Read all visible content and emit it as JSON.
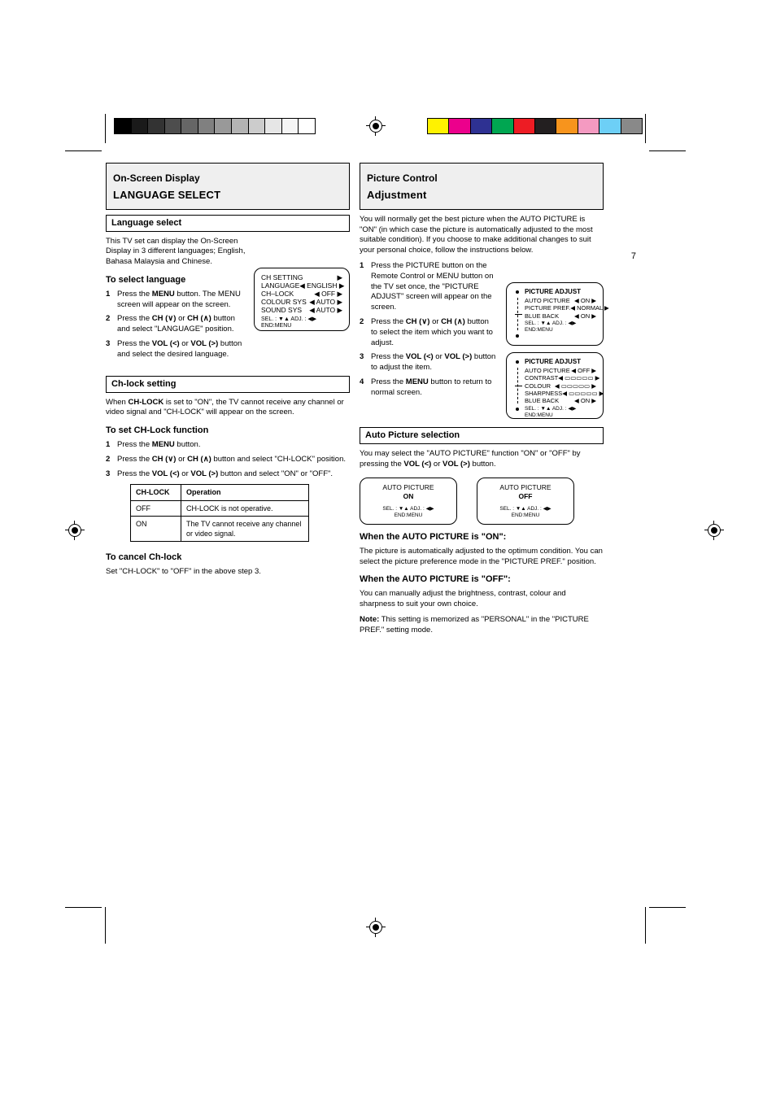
{
  "print_marks": {
    "gray_steps": [
      "#000000",
      "#1a1a1a",
      "#333333",
      "#4d4d4d",
      "#666666",
      "#808080",
      "#999999",
      "#b3b3b3",
      "#cccccc",
      "#e6e6e6",
      "#f5f5f5",
      "#ffffff"
    ],
    "color_steps": [
      "#fff200",
      "#ec008c",
      "#2e3192",
      "#00a651",
      "#ed1c24",
      "#231f20",
      "#f7941d",
      "#f49ac1",
      "#6dcff6",
      "#898989"
    ]
  },
  "left": {
    "section": {
      "pretitle": "On-Screen Display",
      "title": "LANGUAGE SELECT"
    },
    "sub1": "Language select",
    "intro": "This TV set can display the On-Screen Display in 3 different languages; English, Bahasa Malaysia and Chinese.",
    "to_select_heading": "To select language",
    "steps1": [
      {
        "n": "1",
        "t_pre": "Press the ",
        "btn": "MENU",
        "t_post": " button. The MENU screen will appear on the screen."
      },
      {
        "n": "2",
        "t_pre": "Press the ",
        "btn1": "CH (∨)",
        "t_mid": " or ",
        "btn2": "CH (∧)",
        "t_post": " button and select \"LANGUAGE\" position."
      },
      {
        "n": "3",
        "t_pre": "Press the ",
        "btn1": "VOL (<)",
        "t_mid": " or ",
        "btn2": "VOL (>)",
        "t_post": " button and select the desired language."
      }
    ],
    "osd_menu": {
      "rows": [
        {
          "k": "CH SETTING",
          "v": "▶"
        },
        {
          "k": "LANGUAGE",
          "v": "◀ ENGLISH ▶"
        },
        {
          "k": "CH–LOCK",
          "v": "◀ OFF ▶"
        },
        {
          "k": "COLOUR SYS",
          "v": "◀ AUTO ▶"
        },
        {
          "k": "SOUND SYS",
          "v": "◀ AUTO ▶"
        }
      ],
      "hint": "SEL. : ▼▲  ADJ. : ◀▶  END:MENU"
    },
    "sub2": "Ch-lock setting",
    "chlock_intro_pre": "When ",
    "chlock_intro_btn": "CH-LOCK",
    "chlock_intro_post": " is set to \"ON\", the TV cannot receive any channel or video signal and \"CH-LOCK\" will appear on the screen.",
    "to_set_heading": "To set CH-Lock function",
    "steps2": [
      {
        "n": "1",
        "t_pre": "Press the ",
        "btn": "MENU",
        "t_post": " button."
      },
      {
        "n": "2",
        "t_pre": "Press the ",
        "btn1": "CH (∨)",
        "t_mid": " or ",
        "btn2": "CH (∧)",
        "t_post": " button and select \"CH-LOCK\" position."
      },
      {
        "n": "3",
        "t_pre": "Press the ",
        "btn1": "VOL (<)",
        "t_mid": " or ",
        "btn2": "VOL (>)",
        "t_post": " button and select \"ON\" or \"OFF\"."
      }
    ],
    "table": {
      "cols": [
        "CH-LOCK",
        "Operation"
      ],
      "rows": [
        [
          "OFF",
          "CH-LOCK is not operative."
        ],
        [
          "ON",
          "The TV cannot receive any channel or video signal."
        ]
      ]
    },
    "cancel_heading": "To cancel Ch-lock",
    "cancel_text": "Set \"CH-LOCK\" to \"OFF\" in the above step 3."
  },
  "right": {
    "section": {
      "pretitle": "Picture Control",
      "title": "Adjustment"
    },
    "para1": "You will normally get the best picture when the AUTO PICTURE is \"ON\" (in which case the picture is automatically adjusted to the most suitable condition). If you choose to make additional changes to suit your personal choice, follow the instructions below.",
    "steps": [
      {
        "n": "1",
        "t": "Press the PICTURE button on the Remote Control or MENU button on the TV set once, the \"PICTURE ADJUST\" screen will appear on the screen."
      },
      {
        "n": "2",
        "t_pre": "Press the ",
        "btn1": "CH (∨)",
        "t_mid": " or ",
        "btn2": "CH (∧)",
        "t_post": " button to select the item which you want to adjust."
      },
      {
        "n": "3",
        "t_pre": "Press the ",
        "btn1": "VOL (<)",
        "t_mid": " or ",
        "btn2": "VOL (>)",
        "t_post": " button to adjust the item."
      },
      {
        "n": "4",
        "t_pre": "Press the ",
        "btn": "MENU",
        "t_post": " button to return to normal screen."
      }
    ],
    "osd_a": {
      "title": "PICTURE ADJUST",
      "rows": [
        {
          "k": "AUTO PICTURE",
          "v": "◀ ON ▶"
        },
        {
          "k": "PICTURE PREF.",
          "v": "◀ NORMAL ▶"
        },
        {
          "k": "",
          "v": ""
        },
        {
          "k": "BLUE BACK",
          "v": "◀ ON  ▶"
        }
      ],
      "hint": "SEL. : ▼▲  ADJ. : ◀▶  END:MENU"
    },
    "osd_b": {
      "title": "PICTURE ADJUST",
      "rows": [
        {
          "k": "AUTO PICTURE",
          "v": "◀ OFF ▶"
        },
        {
          "k": "CONTRAST",
          "v": "◀ ▭▭▭▭▭ ▶"
        },
        {
          "k": "COLOUR",
          "v": "◀ ▭▭▭▭▭ ▶"
        },
        {
          "k": "SHARPNESS",
          "v": "◀ ▭▭▭▭▭ ▶"
        },
        {
          "k": "BLUE BACK",
          "v": "◀ ON  ▶"
        }
      ],
      "hint": "SEL. : ▼▲  ADJ. : ◀▶  END:MENU"
    },
    "sub1": "Auto Picture selection",
    "autopic_text_pre": "You may select the \"AUTO PICTURE\" function \"ON\" or \"OFF\" by pressing the ",
    "autopic_btn1": "VOL (<)",
    "autopic_mid": " or ",
    "autopic_btn2": "VOL (>)",
    "autopic_text_post": " button.",
    "osd_on": {
      "line1": "AUTO PICTURE",
      "line2": "ON",
      "hint": "SEL. : ▼▲  ADJ. : ◀▶",
      "hint2": "END:MENU"
    },
    "osd_off": {
      "line1": "AUTO PICTURE",
      "line2": "OFF",
      "hint": "SEL. : ▼▲  ADJ. : ◀▶",
      "hint2": "END:MENU"
    },
    "on_heading": "When the AUTO PICTURE is \"ON\":",
    "on_text": "The picture is automatically adjusted to the optimum condition. You can select the picture preference mode in the \"PICTURE PREF.\" position.",
    "off_heading": "When the AUTO PICTURE is \"OFF\":",
    "off_text": "You can manually adjust the brightness, contrast, colour and sharpness to suit your own choice.",
    "note_label": "Note:",
    "note_text": "This setting is memorized as \"PERSONAL\" in the \"PICTURE PREF.\" setting mode."
  },
  "page_number": "7"
}
